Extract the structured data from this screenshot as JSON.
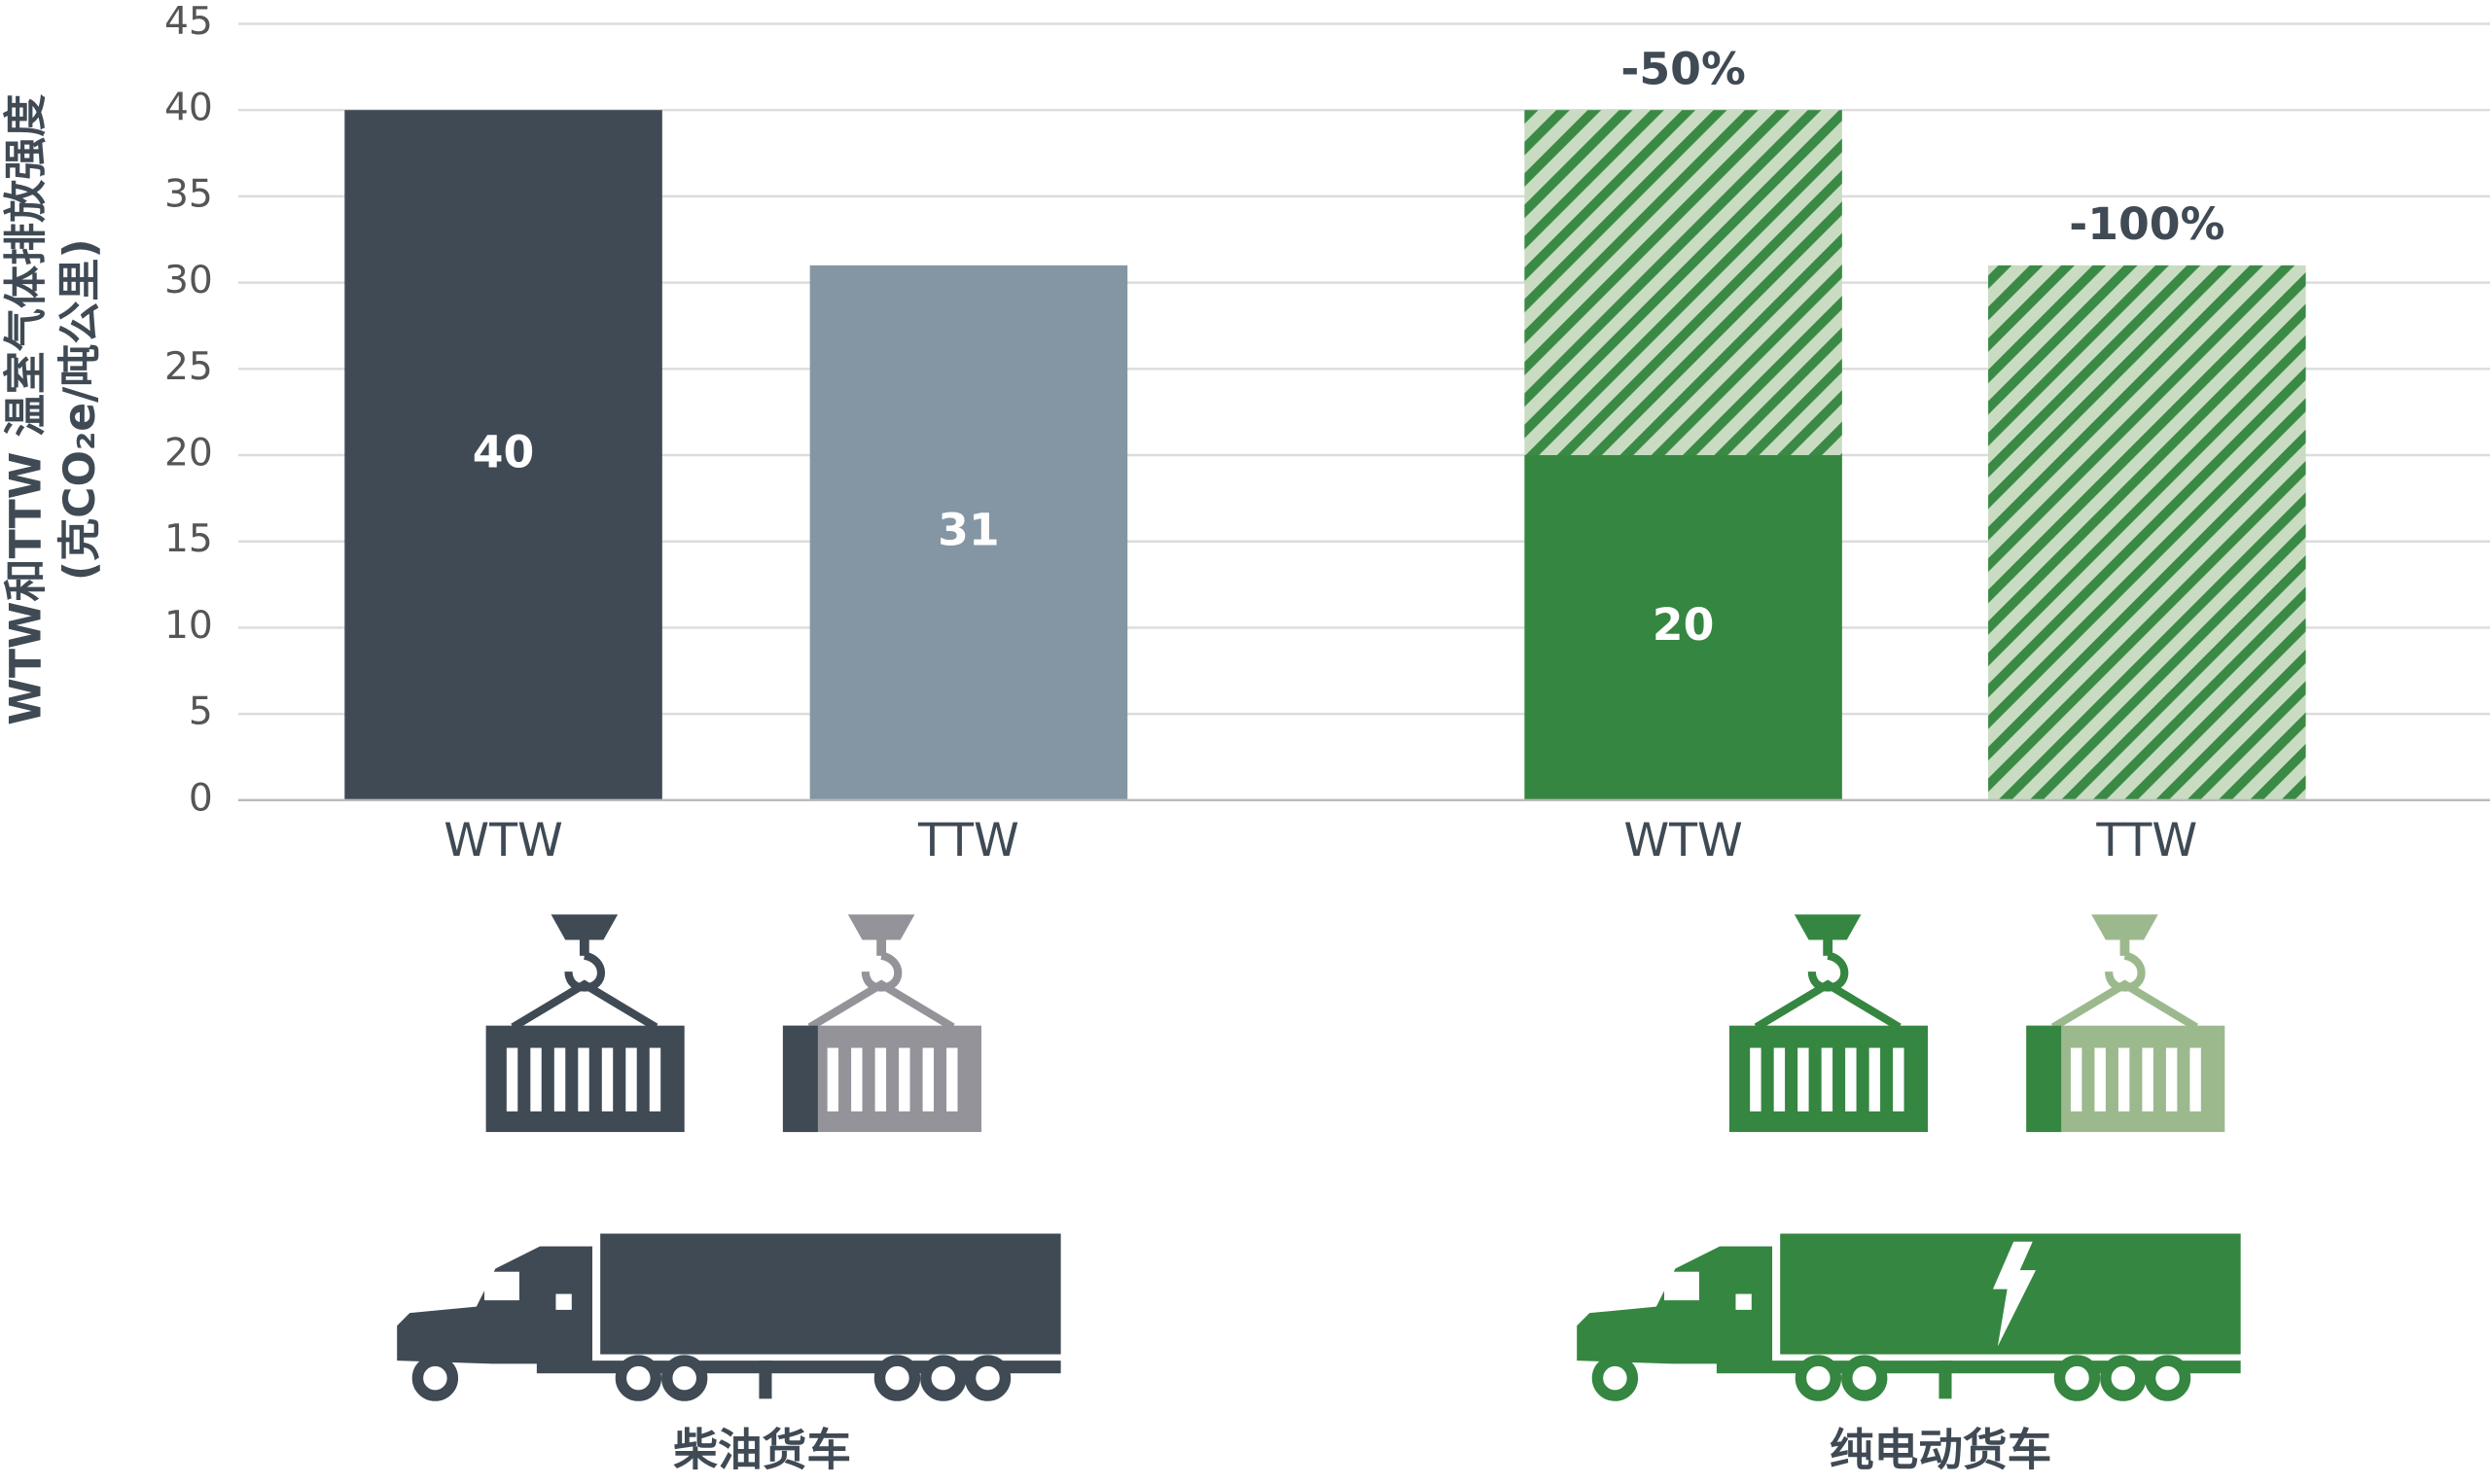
{
  "chart_data": {
    "type": "bar",
    "y_label": [
      "WTW和TTW 温室气体排放强度",
      "(克CO₂e/吨公里)"
    ],
    "categories": [
      "WTW",
      "TTW",
      "WTW",
      "TTW"
    ],
    "groups": [
      {
        "label": "柴油货车",
        "categories": [
          0,
          1
        ]
      },
      {
        "label": "纯电动货车",
        "categories": [
          2,
          3
        ]
      }
    ],
    "series": [
      {
        "colors": [
          "#3f4a54",
          "#8496a3",
          "#358640",
          "#358640"
        ],
        "values": [
          40,
          31,
          20,
          0
        ]
      },
      {
        "pattern": "hatch",
        "values": [
          null,
          null,
          20,
          31
        ]
      }
    ],
    "changes": {
      "values": [
        null,
        null,
        -50,
        -100
      ],
      "value_labels": [
        null,
        null,
        "-50%",
        "-100%"
      ]
    },
    "ylim": [
      0,
      45
    ],
    "yticks": [
      0,
      5,
      10,
      15,
      20,
      25,
      30,
      35,
      40,
      45
    ],
    "grid": true
  }
}
